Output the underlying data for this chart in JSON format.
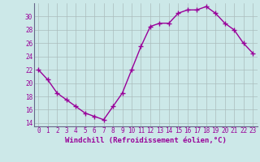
{
  "x": [
    0,
    1,
    2,
    3,
    4,
    5,
    6,
    7,
    8,
    9,
    10,
    11,
    12,
    13,
    14,
    15,
    16,
    17,
    18,
    19,
    20,
    21,
    22,
    23
  ],
  "y": [
    22,
    20.5,
    18.5,
    17.5,
    16.5,
    15.5,
    15.0,
    14.5,
    16.5,
    18.5,
    22.0,
    25.5,
    28.5,
    29.0,
    29.0,
    30.5,
    31.0,
    31.0,
    31.5,
    30.5,
    29.0,
    28.0,
    26.0,
    24.5
  ],
  "line_color": "#990099",
  "marker": "+",
  "markersize": 4,
  "linewidth": 1.0,
  "markeredgewidth": 1.0,
  "xlabel": "Windchill (Refroidissement éolien,°C)",
  "xlabel_fontsize": 6.5,
  "xlim_min": -0.5,
  "xlim_max": 23.5,
  "ylim_min": 13.5,
  "ylim_max": 32,
  "yticks": [
    14,
    16,
    18,
    20,
    22,
    24,
    26,
    28,
    30
  ],
  "xticks": [
    0,
    1,
    2,
    3,
    4,
    5,
    6,
    7,
    8,
    9,
    10,
    11,
    12,
    13,
    14,
    15,
    16,
    17,
    18,
    19,
    20,
    21,
    22,
    23
  ],
  "background_color": "#cce8e8",
  "grid_color": "#aabcbc",
  "tick_fontsize": 5.5,
  "spine_color": "#666688"
}
